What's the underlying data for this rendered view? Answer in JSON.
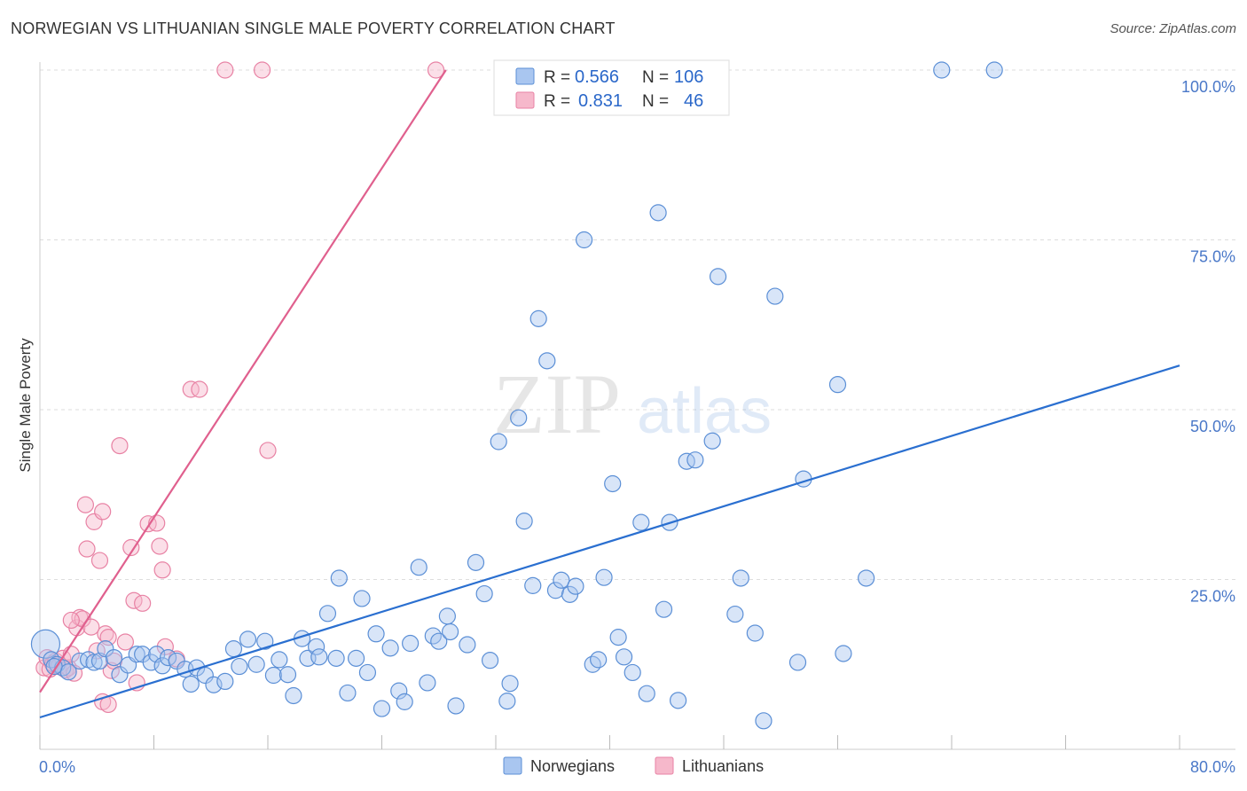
{
  "title": "NORWEGIAN VS LITHUANIAN SINGLE MALE POVERTY CORRELATION CHART",
  "source": "Source: ZipAtlas.com",
  "colors": {
    "norwegian_fill": "#a9c6f0",
    "norwegian_stroke": "#5b8fd6",
    "norwegian_line": "#2a6fd0",
    "lithuanian_fill": "#f6b8cb",
    "lithuanian_stroke": "#e882a4",
    "lithuanian_line": "#e0608e",
    "grid": "#dddddd",
    "tick_text": "#4a78c8"
  },
  "legend": {
    "rows": [
      {
        "r_label": "R =",
        "r_value": "0.566",
        "n_label": "N =",
        "n_value": "106",
        "series": "norwegians"
      },
      {
        "r_label": "R =",
        "r_value": "0.831",
        "n_label": "N =",
        "n_value": "46",
        "series": "lithuanians"
      }
    ]
  },
  "bottom_legend": [
    "Norwegians",
    "Lithuanians"
  ],
  "watermark": {
    "zip": "ZIP",
    "atlas": "atlas"
  },
  "chart_data": {
    "type": "scatter",
    "title": "NORWEGIAN VS LITHUANIAN SINGLE MALE POVERTY CORRELATION CHART",
    "xlabel": "",
    "ylabel": "Single Male Poverty",
    "xlim": [
      0,
      80
    ],
    "ylim": [
      0,
      100
    ],
    "x_tick_labels": [
      "0.0%",
      "80.0%"
    ],
    "y_ticks": [
      25,
      50,
      75,
      100
    ],
    "y_tick_labels": [
      "25.0%",
      "50.0%",
      "75.0%",
      "100.0%"
    ],
    "grid": true,
    "legend_position": "top-center",
    "series": [
      {
        "name": "Norwegians",
        "r": 0.566,
        "n": 106,
        "trendline": {
          "x": [
            0,
            80
          ],
          "y": [
            4.7,
            56.5
          ]
        },
        "points": [
          [
            0.4,
            15.5
          ],
          [
            0.8,
            13.2
          ],
          [
            1.2,
            12.5
          ],
          [
            1.6,
            12.0
          ],
          [
            2.0,
            11.4
          ],
          [
            2.8,
            13.0
          ],
          [
            3.4,
            13.2
          ],
          [
            3.8,
            12.8
          ],
          [
            4.2,
            13.0
          ],
          [
            4.6,
            14.8
          ],
          [
            5.2,
            13.5
          ],
          [
            5.6,
            11.0
          ],
          [
            6.2,
            12.4
          ],
          [
            6.8,
            14.0
          ],
          [
            7.2,
            14.0
          ],
          [
            7.8,
            12.8
          ],
          [
            8.2,
            14.0
          ],
          [
            8.6,
            12.3
          ],
          [
            9.0,
            13.5
          ],
          [
            9.6,
            13.0
          ],
          [
            10.2,
            11.8
          ],
          [
            10.6,
            9.6
          ],
          [
            11.0,
            12.0
          ],
          [
            11.6,
            10.9
          ],
          [
            12.2,
            9.5
          ],
          [
            13.0,
            10.0
          ],
          [
            13.6,
            14.8
          ],
          [
            14.0,
            12.2
          ],
          [
            14.6,
            16.2
          ],
          [
            15.2,
            12.5
          ],
          [
            15.8,
            15.9
          ],
          [
            16.4,
            10.9
          ],
          [
            16.8,
            13.2
          ],
          [
            17.4,
            11.0
          ],
          [
            17.8,
            7.9
          ],
          [
            18.4,
            16.3
          ],
          [
            18.8,
            13.4
          ],
          [
            19.4,
            15.1
          ],
          [
            19.6,
            13.6
          ],
          [
            20.2,
            20.0
          ],
          [
            20.8,
            13.4
          ],
          [
            21.0,
            25.2
          ],
          [
            21.6,
            8.3
          ],
          [
            22.2,
            13.4
          ],
          [
            22.6,
            22.2
          ],
          [
            23.0,
            11.3
          ],
          [
            23.6,
            17.0
          ],
          [
            24.0,
            6.0
          ],
          [
            24.6,
            14.9
          ],
          [
            25.2,
            8.6
          ],
          [
            25.6,
            7.0
          ],
          [
            26.0,
            15.6
          ],
          [
            26.6,
            26.8
          ],
          [
            27.2,
            9.8
          ],
          [
            27.6,
            16.7
          ],
          [
            28.0,
            15.9
          ],
          [
            28.6,
            19.6
          ],
          [
            28.8,
            17.3
          ],
          [
            29.2,
            6.4
          ],
          [
            30.0,
            15.4
          ],
          [
            30.6,
            27.5
          ],
          [
            31.2,
            22.9
          ],
          [
            31.6,
            13.1
          ],
          [
            32.2,
            45.3
          ],
          [
            32.8,
            7.1
          ],
          [
            33.0,
            9.7
          ],
          [
            33.6,
            48.8
          ],
          [
            34.0,
            33.6
          ],
          [
            34.6,
            24.1
          ],
          [
            35.0,
            63.4
          ],
          [
            35.6,
            57.2
          ],
          [
            36.2,
            23.4
          ],
          [
            36.6,
            24.9
          ],
          [
            37.2,
            22.8
          ],
          [
            37.6,
            24.0
          ],
          [
            38.2,
            75.0
          ],
          [
            38.8,
            12.5
          ],
          [
            39.2,
            13.2
          ],
          [
            39.6,
            25.3
          ],
          [
            40.2,
            39.1
          ],
          [
            40.6,
            16.5
          ],
          [
            41.0,
            13.6
          ],
          [
            41.6,
            11.3
          ],
          [
            42.2,
            33.4
          ],
          [
            42.6,
            8.2
          ],
          [
            43.4,
            79.0
          ],
          [
            43.8,
            20.6
          ],
          [
            44.2,
            33.4
          ],
          [
            44.8,
            7.2
          ],
          [
            45.4,
            42.4
          ],
          [
            46.0,
            42.6
          ],
          [
            47.2,
            45.4
          ],
          [
            47.6,
            69.6
          ],
          [
            48.8,
            19.9
          ],
          [
            49.2,
            25.2
          ],
          [
            50.2,
            17.1
          ],
          [
            50.8,
            4.2
          ],
          [
            51.6,
            66.7
          ],
          [
            53.2,
            12.8
          ],
          [
            53.6,
            39.8
          ],
          [
            56.0,
            53.7
          ],
          [
            56.4,
            14.1
          ],
          [
            58.0,
            25.2
          ],
          [
            63.3,
            100.0
          ],
          [
            67.0,
            100.0
          ],
          [
            1.0,
            12.2
          ]
        ]
      },
      {
        "name": "Lithuanians",
        "r": 0.831,
        "n": 46,
        "trendline": {
          "x": [
            0,
            28.5
          ],
          "y": [
            8.4,
            100.0
          ]
        },
        "points": [
          [
            0.3,
            12.0
          ],
          [
            0.5,
            13.5
          ],
          [
            0.7,
            11.8
          ],
          [
            0.9,
            12.6
          ],
          [
            1.1,
            13.0
          ],
          [
            1.3,
            12.2
          ],
          [
            1.6,
            13.4
          ],
          [
            1.8,
            11.7
          ],
          [
            2.0,
            12.0
          ],
          [
            2.2,
            14.0
          ],
          [
            2.4,
            11.2
          ],
          [
            2.6,
            17.9
          ],
          [
            2.8,
            19.4
          ],
          [
            3.0,
            19.2
          ],
          [
            3.2,
            36.0
          ],
          [
            3.3,
            29.5
          ],
          [
            3.6,
            18.0
          ],
          [
            3.8,
            33.5
          ],
          [
            4.0,
            14.5
          ],
          [
            4.2,
            27.8
          ],
          [
            4.4,
            35.0
          ],
          [
            4.6,
            17.0
          ],
          [
            4.8,
            16.5
          ],
          [
            5.0,
            11.6
          ],
          [
            5.2,
            13.0
          ],
          [
            5.6,
            44.7
          ],
          [
            6.0,
            15.8
          ],
          [
            6.4,
            29.7
          ],
          [
            6.6,
            21.9
          ],
          [
            6.8,
            9.8
          ],
          [
            7.2,
            21.5
          ],
          [
            7.6,
            33.2
          ],
          [
            8.2,
            33.3
          ],
          [
            8.4,
            29.9
          ],
          [
            8.6,
            26.4
          ],
          [
            8.8,
            15.1
          ],
          [
            9.6,
            13.3
          ],
          [
            10.6,
            53.0
          ],
          [
            11.2,
            53.0
          ],
          [
            13.0,
            100.0
          ],
          [
            15.6,
            100.0
          ],
          [
            16.0,
            44.0
          ],
          [
            27.8,
            100.0
          ],
          [
            4.4,
            7.0
          ],
          [
            2.2,
            19.0
          ],
          [
            4.8,
            6.6
          ]
        ]
      }
    ]
  }
}
